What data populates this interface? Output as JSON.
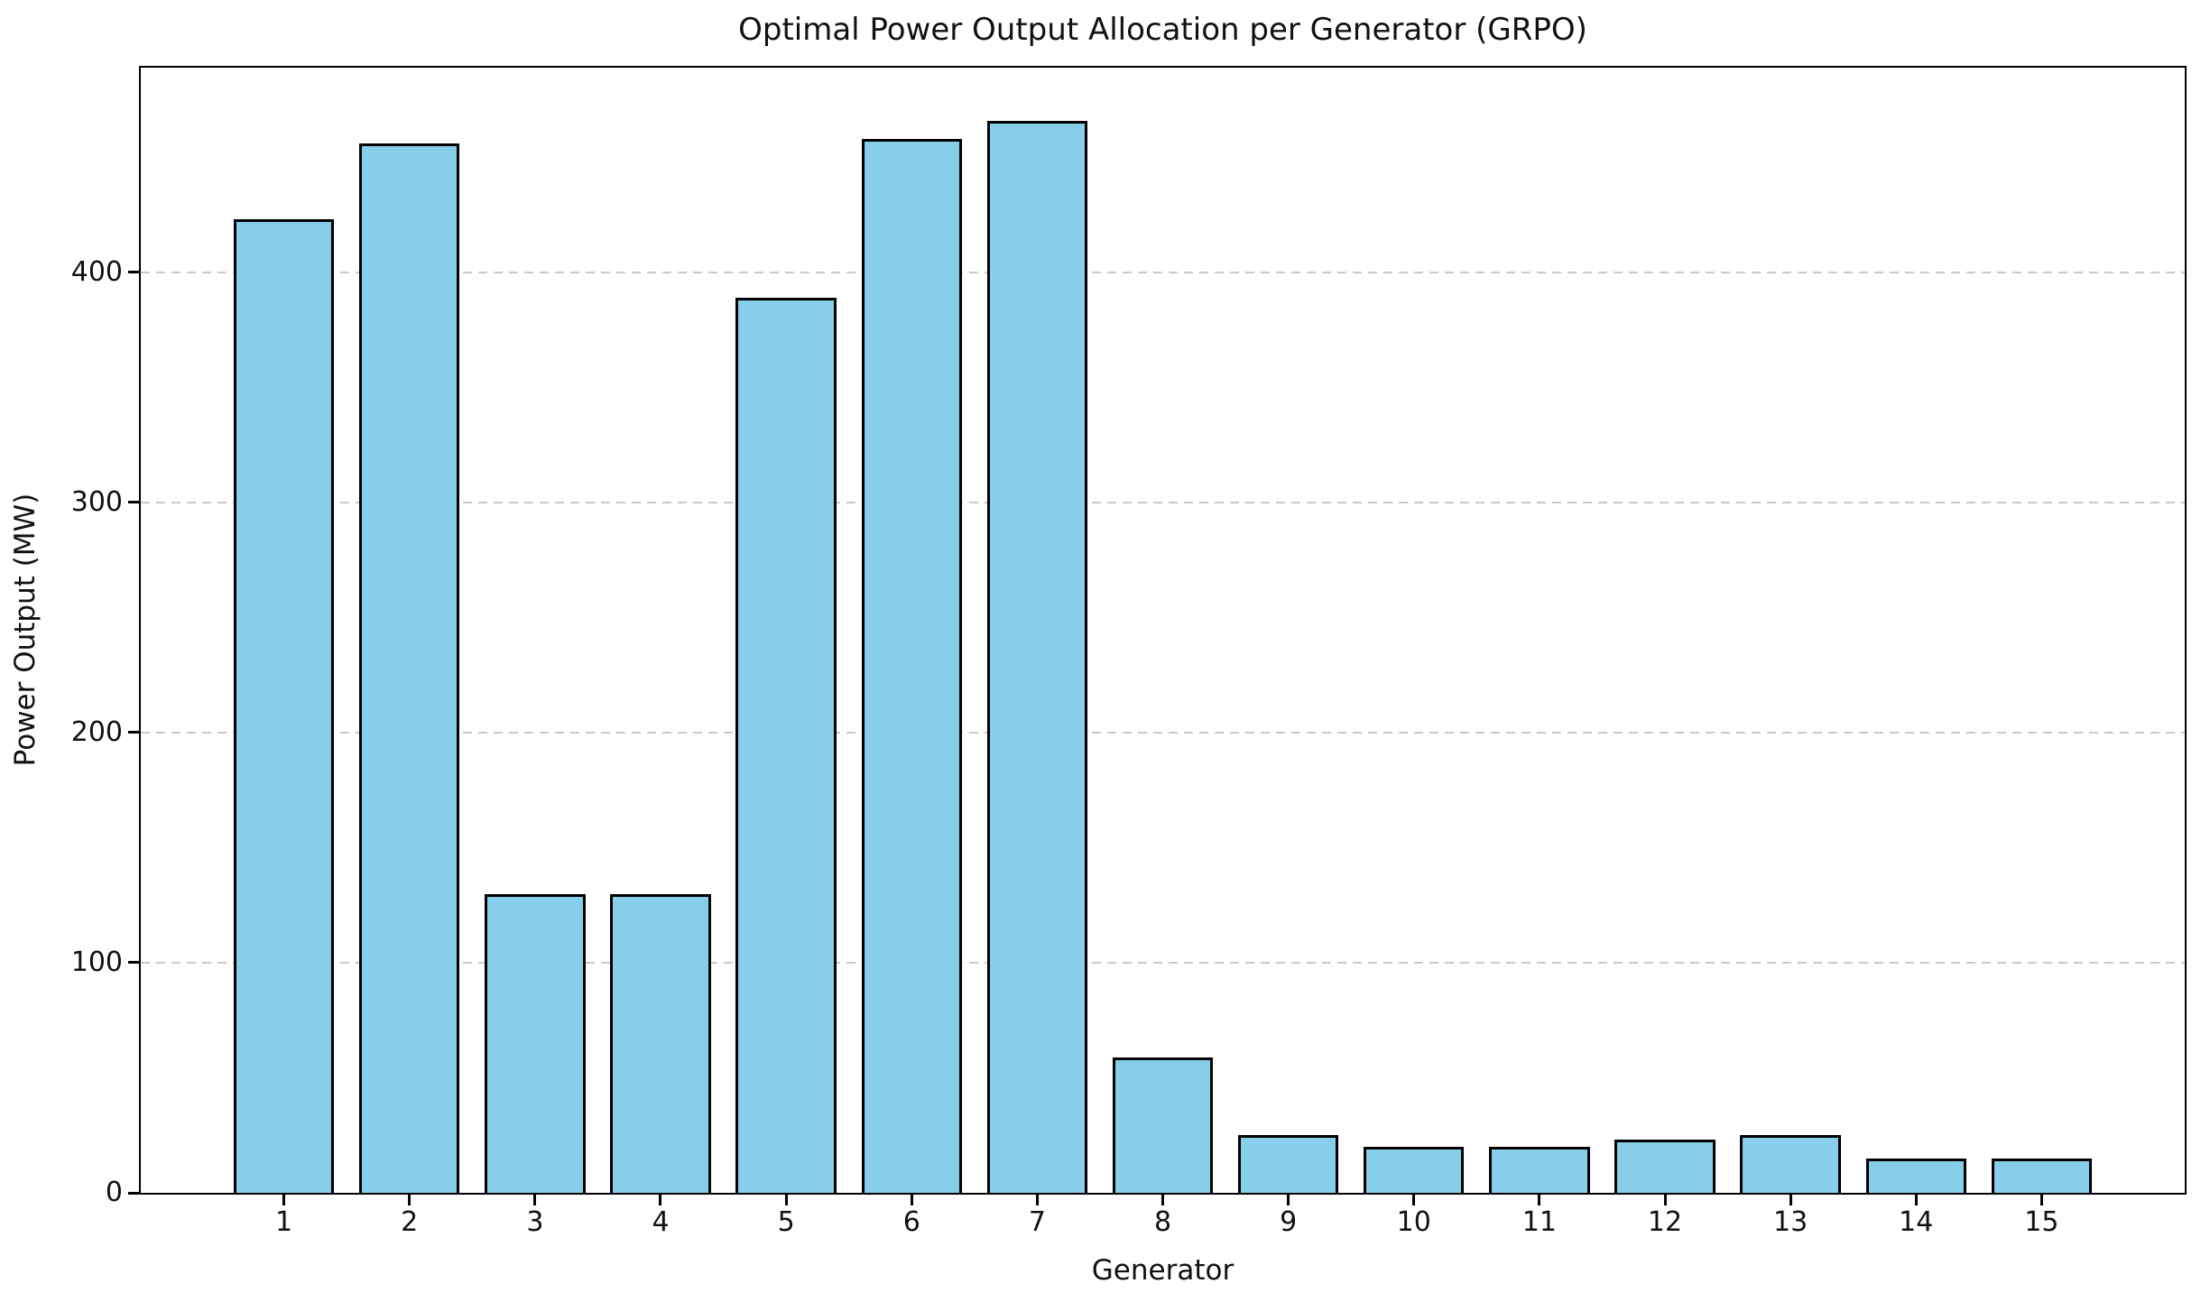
{
  "figure": {
    "background": "#ffffff"
  },
  "chart_data": {
    "type": "bar",
    "title": "Optimal Power Output Allocation per Generator (GRPO)",
    "xlabel": "Generator",
    "ylabel": "Power Output (MW)",
    "categories": [
      "1",
      "2",
      "3",
      "4",
      "5",
      "6",
      "7",
      "8",
      "9",
      "10",
      "11",
      "12",
      "13",
      "14",
      "15"
    ],
    "values": [
      423,
      456,
      130,
      130,
      389,
      458,
      466,
      59,
      25,
      20,
      20,
      23,
      25,
      15,
      15
    ],
    "ylim": [
      0,
      489
    ],
    "yticks": [
      0,
      100,
      200,
      300,
      400
    ],
    "ytick_labels": [
      "0",
      "100",
      "200",
      "300",
      "400"
    ],
    "grid": "horizontal-dashed",
    "legend_position": "none",
    "bar_color": "#87CEEB",
    "bar_edge_color": "#000000",
    "grid_color": "#c9c9c9",
    "spine_color": "#000000",
    "text_color": "#111111"
  }
}
